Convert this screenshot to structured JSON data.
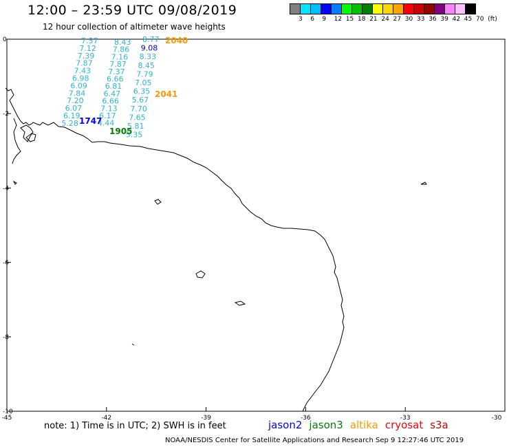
{
  "header": {
    "title": "12:00 – 23:59 UTC 09/08/2019",
    "subtitle": "12 hour collection of altimeter wave heights"
  },
  "colorbar": {
    "colors": [
      "#808080",
      "#00e5ff",
      "#00bfff",
      "#0000ff",
      "#0080ff",
      "#00ff00",
      "#00c000",
      "#008000",
      "#ffff00",
      "#ffd700",
      "#ffa500",
      "#ff0000",
      "#cc0000",
      "#990000",
      "#800080",
      "#ff80ff",
      "#ffc0ff",
      "#000000"
    ],
    "labels": [
      "3",
      "6",
      "9",
      "12",
      "15",
      "18",
      "21",
      "24",
      "27",
      "30",
      "33",
      "36",
      "39",
      "42",
      "45",
      "70",
      "(ft)"
    ]
  },
  "axes": {
    "x_ticks": [
      "-45",
      "-42",
      "-39",
      "-36",
      "-33",
      "-30"
    ],
    "y_ticks": [
      "0",
      "-2",
      "-4",
      "-6",
      "-8",
      "-10"
    ]
  },
  "track_labels": [
    {
      "text": "7.57",
      "color": "#29b6d8"
    },
    {
      "text": "7.12",
      "color": "#29b6d8"
    },
    {
      "text": "7.39",
      "color": "#29b6d8"
    },
    {
      "text": "7.87",
      "color": "#29b6d8"
    },
    {
      "text": "7.43",
      "color": "#29b6d8"
    },
    {
      "text": "6.98",
      "color": "#29b6d8"
    },
    {
      "text": "6.09",
      "color": "#29b6d8"
    },
    {
      "text": "7.84",
      "color": "#29b6d8"
    },
    {
      "text": "7.20",
      "color": "#29b6d8"
    },
    {
      "text": "6.07",
      "color": "#29b6d8"
    },
    {
      "text": "6.19",
      "color": "#29b6d8"
    },
    {
      "text": "5.28",
      "color": "#29b6d8"
    },
    {
      "text": "8.43",
      "color": "#29b6d8"
    },
    {
      "text": "7.86",
      "color": "#29b6d8"
    },
    {
      "text": "7.16",
      "color": "#29b6d8"
    },
    {
      "text": "7.87",
      "color": "#29b6d8"
    },
    {
      "text": "7.37",
      "color": "#29b6d8"
    },
    {
      "text": "6.66",
      "color": "#29b6d8"
    },
    {
      "text": "6.81",
      "color": "#29b6d8"
    },
    {
      "text": "6.47",
      "color": "#29b6d8"
    },
    {
      "text": "6.66",
      "color": "#29b6d8"
    },
    {
      "text": "7.13",
      "color": "#29b6d8"
    },
    {
      "text": "6.17",
      "color": "#29b6d8"
    },
    {
      "text": "4.44",
      "color": "#29b6d8"
    },
    {
      "text": "8.77",
      "color": "#29b6d8"
    },
    {
      "text": "9.08",
      "color": "#0000cc"
    },
    {
      "text": "8.33",
      "color": "#29b6d8"
    },
    {
      "text": "8.45",
      "color": "#29b6d8"
    },
    {
      "text": "7.79",
      "color": "#29b6d8"
    },
    {
      "text": "7.05",
      "color": "#29b6d8"
    },
    {
      "text": "6.35",
      "color": "#29b6d8"
    },
    {
      "text": "5.67",
      "color": "#29b6d8"
    },
    {
      "text": "7.70",
      "color": "#29b6d8"
    },
    {
      "text": "7.65",
      "color": "#29b6d8"
    },
    {
      "text": "5.81",
      "color": "#29b6d8"
    },
    {
      "text": "5.35",
      "color": "#29b6d8"
    }
  ],
  "time_labels": [
    {
      "text": "2040",
      "color": "#ff9900"
    },
    {
      "text": "2041",
      "color": "#ff9900"
    },
    {
      "text": "1747",
      "color": "#0000ff"
    },
    {
      "text": "1905",
      "color": "#008000"
    }
  ],
  "footer": {
    "note": "note:  1) Time is in UTC;  2) SWH is in feet",
    "satellites": [
      {
        "name": "jason2",
        "color": "#0000ff"
      },
      {
        "name": "jason3",
        "color": "#008000"
      },
      {
        "name": "altika",
        "color": "#ff9900"
      },
      {
        "name": "cryosat",
        "color": "#ff0000"
      },
      {
        "name": "s3a",
        "color": "#cc0000"
      }
    ],
    "credit": "NOAA/NESDIS Center for Satellite Applications and Research    Sep  9 12:27:46 UTC 2019"
  }
}
